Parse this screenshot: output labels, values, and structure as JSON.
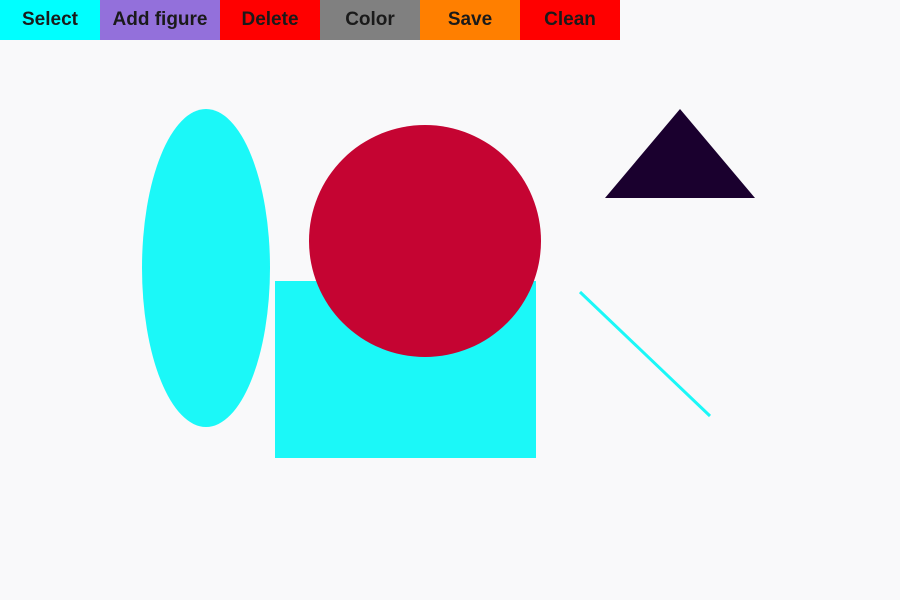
{
  "toolbar": {
    "buttons": [
      {
        "id": "select",
        "label": "Select",
        "color": "#00ffff"
      },
      {
        "id": "add_figure",
        "label": "Add figure",
        "color": "#9370db"
      },
      {
        "id": "delete",
        "label": "Delete",
        "color": "#ff0000"
      },
      {
        "id": "color",
        "label": "Color",
        "color": "#808080"
      },
      {
        "id": "save",
        "label": "Save",
        "color": "#ff7f00"
      },
      {
        "id": "clean",
        "label": "Clean",
        "color": "#ff0000"
      }
    ]
  },
  "canvas": {
    "background": "#f9f9fa",
    "figures": [
      {
        "kind": "ellipse",
        "color": "#1bf8f8"
      },
      {
        "kind": "rectangle",
        "color": "#1bf8f8"
      },
      {
        "kind": "circle",
        "color": "#c50432"
      },
      {
        "kind": "triangle",
        "color": "#1a002e"
      },
      {
        "kind": "line",
        "color": "#1bf8f8"
      }
    ]
  }
}
